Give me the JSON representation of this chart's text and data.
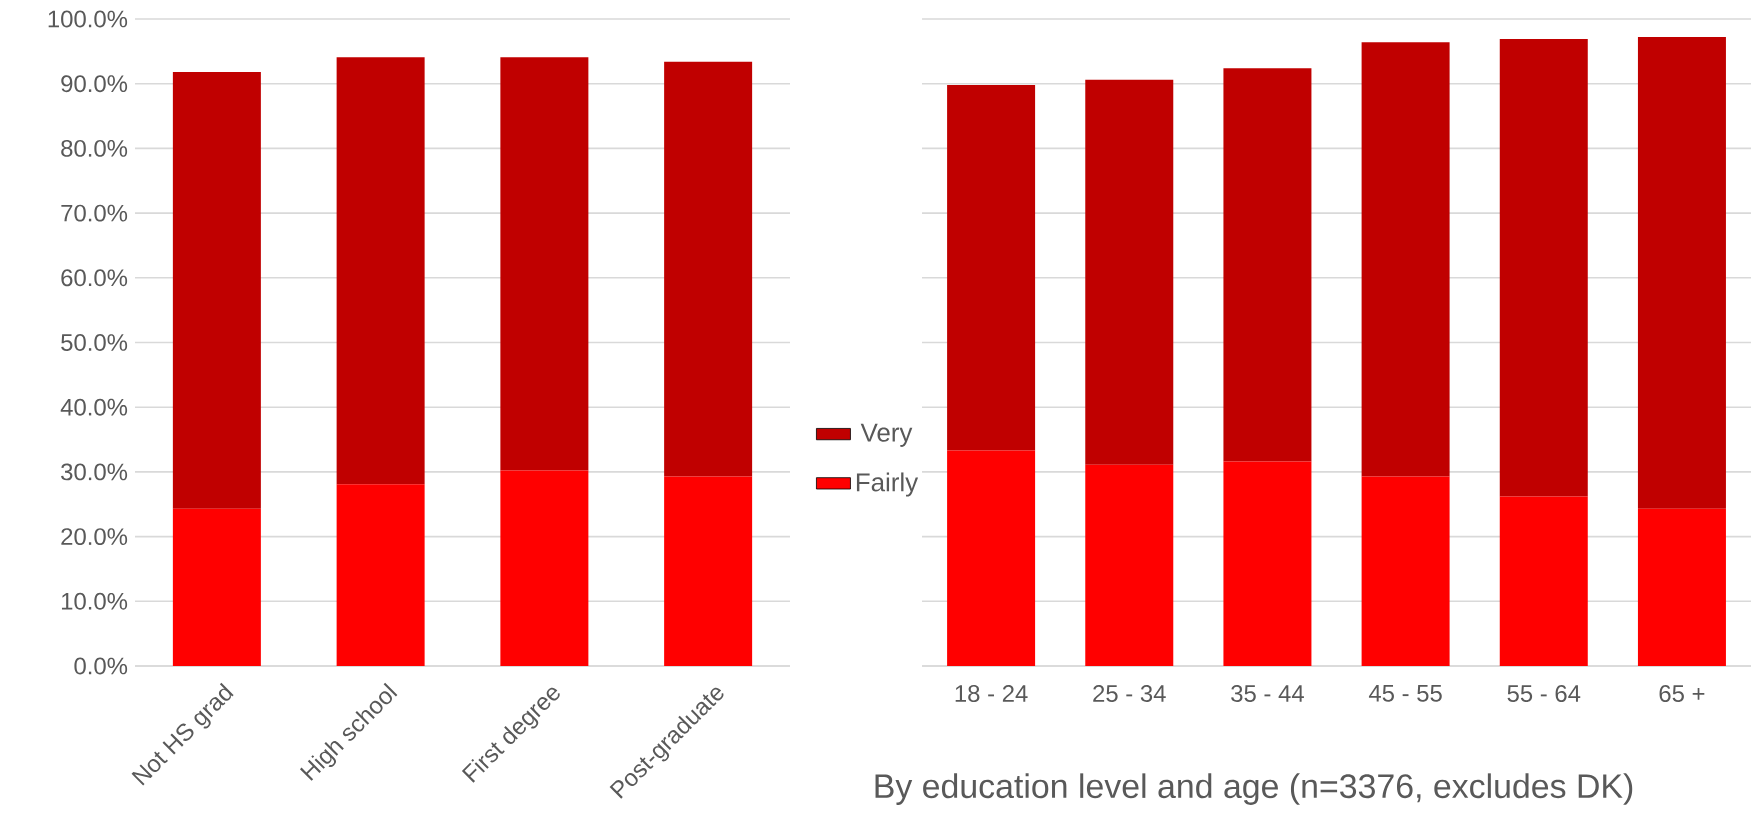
{
  "chart_data": [
    {
      "type": "bar",
      "stacked": true,
      "categories": [
        "Not HS grad",
        "High school",
        "First degree",
        "Post-graduate"
      ],
      "series": [
        {
          "name": "Fairly",
          "color": "#ff0000",
          "values": [
            24.3,
            28.1,
            30.2,
            29.3
          ]
        },
        {
          "name": "Very",
          "color": "#c00000",
          "values": [
            67.5,
            66.0,
            63.9,
            64.1
          ]
        }
      ],
      "ylim": [
        0,
        100
      ],
      "yticks": [
        {
          "value": 0,
          "label": "0.0%"
        },
        {
          "value": 10,
          "label": "10.0%"
        },
        {
          "value": 20,
          "label": "20.0%"
        },
        {
          "value": 30,
          "label": "30.0%"
        },
        {
          "value": 40,
          "label": "40.0%"
        },
        {
          "value": 50,
          "label": "50.0%"
        },
        {
          "value": 60,
          "label": "60.0%"
        },
        {
          "value": 70,
          "label": "70.0%"
        },
        {
          "value": 80,
          "label": "80.0%"
        },
        {
          "value": 90,
          "label": "90.0%"
        },
        {
          "value": 100,
          "label": "100.0%"
        }
      ],
      "grid": "y",
      "legend": "right"
    },
    {
      "type": "bar",
      "stacked": true,
      "categories": [
        "18 - 24",
        "25 - 34",
        "35 - 44",
        "45 - 55",
        "55 - 64",
        "65 +"
      ],
      "series": [
        {
          "color": "#ff0000",
          "values": [
            33.3,
            31.1,
            31.6,
            29.3,
            26.2,
            24.3
          ]
        },
        {
          "color": "#c00000",
          "values": [
            56.5,
            59.5,
            60.8,
            67.1,
            70.7,
            72.9
          ]
        }
      ],
      "ylim": [
        0,
        100
      ],
      "yticks": [
        {
          "value": 0,
          "label": null
        },
        {
          "value": 10,
          "label": null
        },
        {
          "value": 20,
          "label": null
        },
        {
          "value": 30,
          "label": null
        },
        {
          "value": 40,
          "label": null
        },
        {
          "value": 50,
          "label": null
        },
        {
          "value": 60,
          "label": null
        },
        {
          "value": 70,
          "label": null
        },
        {
          "value": 80,
          "label": null
        },
        {
          "value": 90,
          "label": null
        },
        {
          "value": 100,
          "label": null
        }
      ],
      "tick_labels": "x",
      "grid": "y",
      "annotations": [
        "By education level and age (n=3376, excludes DK)"
      ]
    }
  ]
}
